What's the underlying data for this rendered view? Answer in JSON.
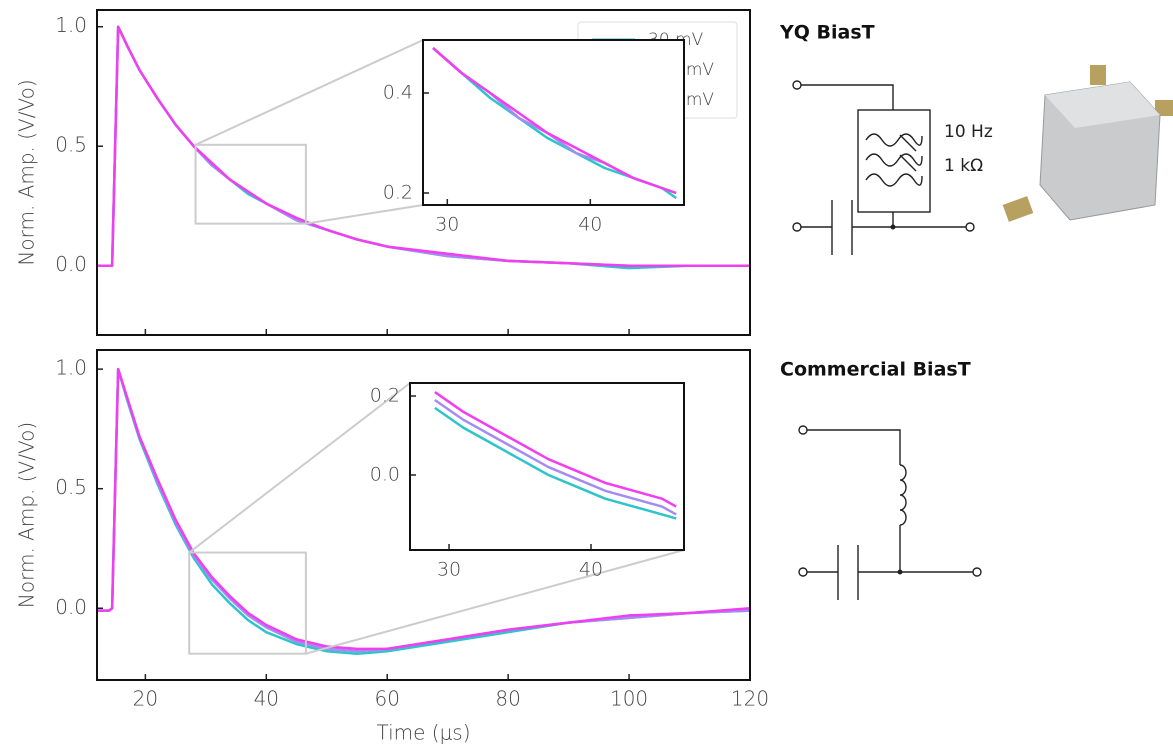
{
  "chart_data": [
    {
      "type": "line",
      "ylabel": "Norm. Amp. (V/Vo)",
      "x": [
        12,
        14,
        14.5,
        15.5,
        17,
        19,
        22,
        25,
        28,
        31,
        34,
        37,
        40,
        45,
        50,
        55,
        60,
        70,
        80,
        90,
        100,
        110,
        120
      ],
      "series": [
        {
          "name": "30 mV",
          "color": "#2ec4c9",
          "values": [
            0,
            0,
            0,
            1.0,
            0.92,
            0.82,
            0.7,
            0.59,
            0.5,
            0.42,
            0.36,
            0.3,
            0.26,
            0.19,
            0.15,
            0.11,
            0.08,
            0.04,
            0.02,
            0.01,
            -0.01,
            0,
            0
          ]
        },
        {
          "name": "500 mV",
          "color": "#a48cf0",
          "values": [
            0,
            0,
            0,
            1.0,
            0.92,
            0.82,
            0.7,
            0.59,
            0.5,
            0.42,
            0.36,
            0.31,
            0.26,
            0.19,
            0.15,
            0.11,
            0.08,
            0.04,
            0.02,
            0.01,
            0,
            0,
            0
          ]
        },
        {
          "name": "750 mV",
          "color": "#f03ef0",
          "values": [
            0,
            0,
            0,
            1.0,
            0.92,
            0.82,
            0.7,
            0.59,
            0.5,
            0.43,
            0.36,
            0.31,
            0.26,
            0.2,
            0.15,
            0.11,
            0.08,
            0.05,
            0.02,
            0.01,
            0,
            0,
            0
          ]
        }
      ],
      "xlim": [
        12,
        120
      ],
      "ylim": [
        -0.29,
        1.07
      ],
      "yticks": [
        {
          "value": 0,
          "label": "0.0"
        },
        0.5,
        {
          "value": 1,
          "label": "1.0"
        }
      ],
      "legend": "upper right"
    },
    {
      "type": "line",
      "ylabel": "Norm. Amp. (V/Vo)",
      "xlabel": "Time (μs)",
      "x": [
        12,
        14,
        14.5,
        15.5,
        17,
        19,
        22,
        25,
        28,
        31,
        34,
        37,
        40,
        45,
        50,
        55,
        60,
        70,
        80,
        90,
        100,
        110,
        120
      ],
      "series": [
        {
          "color": "#2ec4c9",
          "values": [
            -0.01,
            -0.01,
            0,
            1.0,
            0.87,
            0.71,
            0.52,
            0.35,
            0.21,
            0.1,
            0.02,
            -0.05,
            -0.1,
            -0.15,
            -0.18,
            -0.19,
            -0.18,
            -0.14,
            -0.1,
            -0.06,
            -0.04,
            -0.02,
            -0.01
          ]
        },
        {
          "color": "#a48cf0",
          "values": [
            -0.01,
            -0.01,
            0,
            1.0,
            0.88,
            0.72,
            0.53,
            0.36,
            0.22,
            0.12,
            0.04,
            -0.03,
            -0.08,
            -0.14,
            -0.17,
            -0.18,
            -0.17,
            -0.13,
            -0.09,
            -0.06,
            -0.04,
            -0.02,
            -0.01
          ]
        },
        {
          "color": "#f03ef0",
          "values": [
            -0.01,
            -0.01,
            0,
            1.0,
            0.88,
            0.72,
            0.54,
            0.37,
            0.23,
            0.13,
            0.05,
            -0.02,
            -0.07,
            -0.13,
            -0.16,
            -0.17,
            -0.17,
            -0.13,
            -0.09,
            -0.06,
            -0.03,
            -0.02,
            0
          ]
        }
      ],
      "xlim": [
        12,
        120
      ],
      "ylim": [
        -0.3,
        1.08
      ],
      "xticks": [
        20,
        40,
        60,
        80,
        100,
        120
      ],
      "yticks": [
        {
          "value": 0,
          "label": "0.0"
        },
        0.5,
        {
          "value": 1,
          "label": "1.0"
        }
      ]
    },
    {
      "type": "line",
      "x": [
        29,
        31,
        33,
        35,
        37,
        39,
        41,
        43,
        45,
        46
      ],
      "series": [
        {
          "color": "#2ec4c9",
          "values": [
            0.49,
            0.44,
            0.39,
            0.35,
            0.31,
            0.28,
            0.25,
            0.23,
            0.21,
            0.19
          ]
        },
        {
          "color": "#a48cf0",
          "values": [
            0.49,
            0.44,
            0.4,
            0.35,
            0.32,
            0.28,
            0.26,
            0.23,
            0.21,
            0.2
          ]
        },
        {
          "color": "#f03ef0",
          "values": [
            0.49,
            0.44,
            0.4,
            0.36,
            0.32,
            0.29,
            0.26,
            0.23,
            0.21,
            0.2
          ]
        }
      ],
      "xlim": [
        28.3,
        46.55
      ],
      "ylim": [
        0.176,
        0.506
      ],
      "xticks": [
        30,
        40
      ],
      "yticks": [
        0.2,
        0.4
      ]
    },
    {
      "type": "line",
      "x": [
        29,
        31,
        33,
        35,
        37,
        39,
        41,
        43,
        45,
        46
      ],
      "series": [
        {
          "color": "#2ec4c9",
          "values": [
            0.17,
            0.12,
            0.08,
            0.04,
            0.0,
            -0.03,
            -0.06,
            -0.08,
            -0.1,
            -0.11
          ]
        },
        {
          "color": "#a48cf0",
          "values": [
            0.19,
            0.14,
            0.1,
            0.06,
            0.02,
            -0.01,
            -0.04,
            -0.06,
            -0.08,
            -0.1
          ]
        },
        {
          "color": "#f03ef0",
          "values": [
            0.21,
            0.16,
            0.12,
            0.08,
            0.04,
            0.01,
            -0.02,
            -0.04,
            -0.06,
            -0.08
          ]
        }
      ],
      "xlim": [
        27.25,
        46.55
      ],
      "ylim": [
        -0.19,
        0.233
      ],
      "xticks": [
        30,
        40
      ],
      "yticks": [
        {
          "value": 0,
          "label": "0.0"
        },
        0.2
      ]
    }
  ],
  "diagrams": [
    {
      "title": "YQ BiasT",
      "labels": [
        "10 Hz",
        "1 kΩ"
      ]
    },
    {
      "title": "Commercial BiasT"
    }
  ]
}
